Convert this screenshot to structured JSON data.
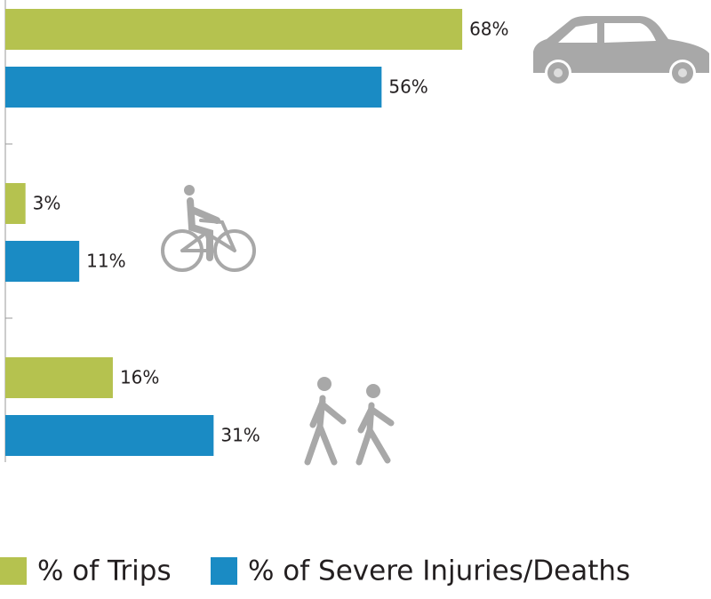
{
  "chart_data": {
    "type": "hbar",
    "categories": [
      null,
      null,
      null
    ],
    "series": [
      {
        "name": "% of Trips",
        "color": "#b5c24f",
        "values": [
          68,
          3,
          16
        ],
        "value_labels": [
          "68%",
          "3%",
          "16%"
        ]
      },
      {
        "name": "% of Severe Injuries/Deaths",
        "color": "#1a8bc4",
        "values": [
          56,
          11,
          31
        ],
        "value_labels": [
          "56%",
          "11%",
          "31%"
        ]
      }
    ]
  }
}
